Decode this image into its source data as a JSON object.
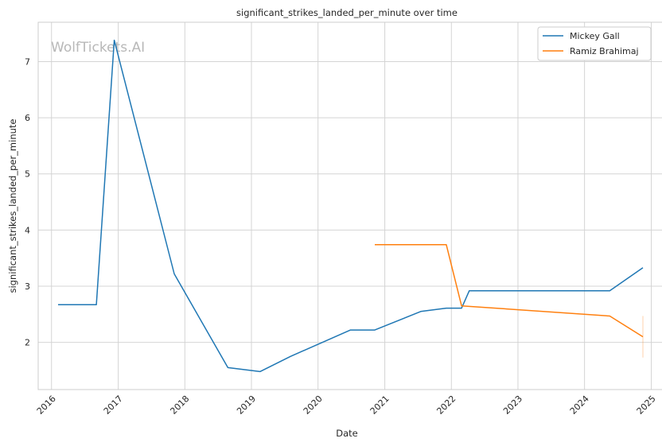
{
  "watermark": "WolfTickets.AI",
  "chart_data": {
    "type": "line",
    "title": "significant_strikes_landed_per_minute over time",
    "xlabel": "Date",
    "ylabel": "significant_strikes_landed_per_minute",
    "xlim": [
      "2015-10-20",
      "2025-03-05"
    ],
    "ylim": [
      1.16,
      7.7
    ],
    "x_ticks": [
      "2016",
      "2017",
      "2018",
      "2019",
      "2020",
      "2021",
      "2022",
      "2023",
      "2024",
      "2025"
    ],
    "y_ticks": [
      2,
      3,
      4,
      5,
      6,
      7
    ],
    "grid": true,
    "legend_position": "top-right",
    "series": [
      {
        "name": "Mickey Gall",
        "color": "#1f77b4",
        "points": [
          [
            "2016-02-06",
            2.67
          ],
          [
            "2016-09-03",
            2.67
          ],
          [
            "2016-12-10",
            7.38
          ],
          [
            "2017-11-04",
            3.22
          ],
          [
            "2018-08-25",
            1.55
          ],
          [
            "2019-02-17",
            1.48
          ],
          [
            "2019-08-03",
            1.75
          ],
          [
            "2020-06-27",
            2.22
          ],
          [
            "2020-11-07",
            2.22
          ],
          [
            "2021-07-17",
            2.55
          ],
          [
            "2021-08-07",
            2.56
          ],
          [
            "2021-12-04",
            2.61
          ],
          [
            "2022-02-26",
            2.61
          ],
          [
            "2022-04-09",
            2.92
          ],
          [
            "2024-05-18",
            2.92
          ],
          [
            "2024-11-16",
            3.33
          ]
        ]
      },
      {
        "name": "Ramiz Brahimaj",
        "color": "#ff7f0e",
        "points": [
          [
            "2020-11-07",
            3.74
          ],
          [
            "2021-12-04",
            3.74
          ],
          [
            "2022-02-26",
            2.65
          ],
          [
            "2024-05-18",
            2.47
          ],
          [
            "2024-11-16",
            2.1
          ]
        ],
        "error_bar": {
          "x": "2024-11-16",
          "low": 1.73,
          "high": 2.47
        }
      }
    ]
  }
}
